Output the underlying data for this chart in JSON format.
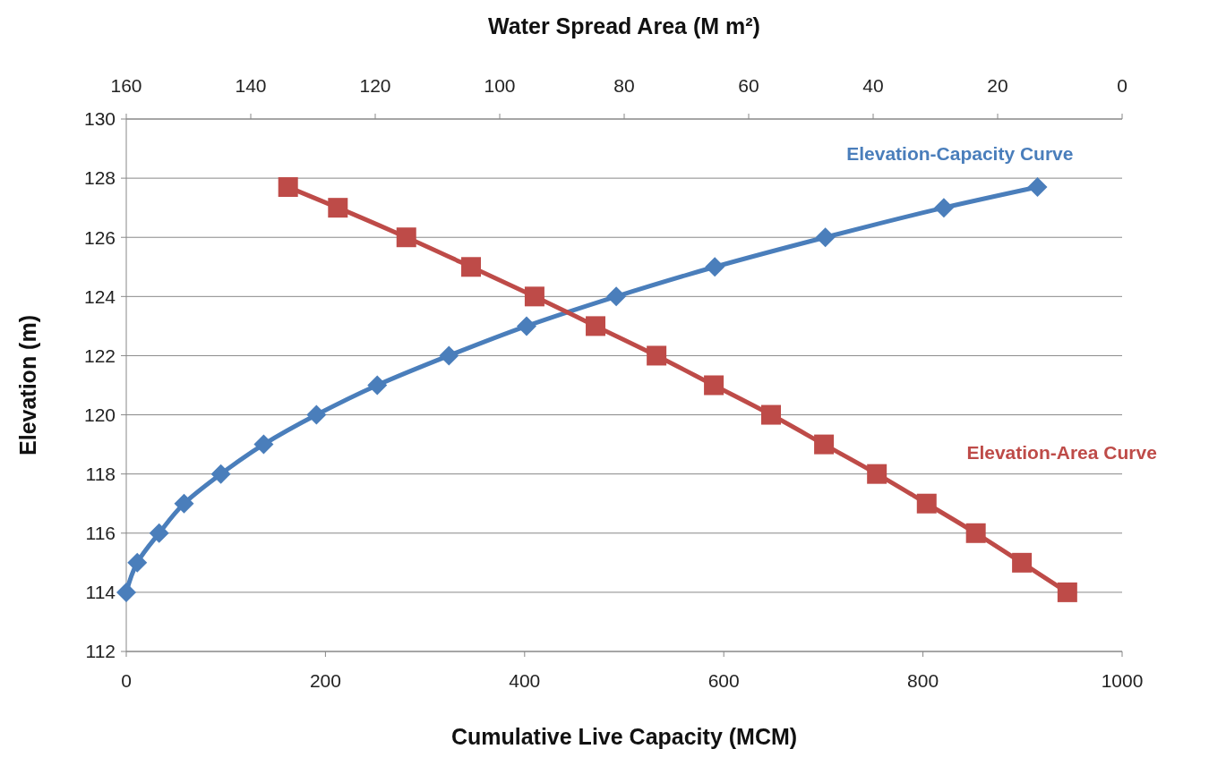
{
  "chart_data": {
    "type": "line",
    "xlabel": "Cumulative Live Capacity (MCM)",
    "x2label": "Water Spread Area (M m²)",
    "ylabel": "Elevation (m)",
    "xlim": [
      0,
      1000
    ],
    "xticks": [
      0,
      200,
      400,
      600,
      800,
      1000
    ],
    "x2lim": [
      160,
      0
    ],
    "x2ticks": [
      160,
      140,
      120,
      100,
      80,
      60,
      40,
      20,
      0
    ],
    "ylim": [
      112,
      130
    ],
    "yticks": [
      112,
      114,
      116,
      118,
      120,
      122,
      124,
      126,
      128,
      130
    ],
    "grid": "y",
    "series": [
      {
        "name": "Elevation-Capacity Curve",
        "color": "#4a7ebb",
        "marker": "diamond",
        "x": [
          0,
          11,
          33,
          58,
          95,
          138,
          191,
          252,
          324,
          402,
          492,
          591,
          702,
          821,
          915
        ],
        "values": [
          114,
          115,
          116,
          117,
          118,
          119,
          120,
          121,
          122,
          123,
          124,
          125,
          126,
          127,
          127.7
        ]
      },
      {
        "name": "Elevation-Area Curve",
        "color": "#be4b48",
        "marker": "square",
        "axis": "x2",
        "x": [
          134,
          126,
          115,
          104.6,
          94.4,
          84.6,
          74.8,
          65.6,
          56.4,
          47.9,
          39.4,
          31.4,
          23.5,
          16.1,
          8.8
        ],
        "values": [
          127.7,
          127,
          126,
          125,
          124,
          123,
          122,
          121,
          120,
          119,
          118,
          117,
          116,
          115,
          114
        ]
      }
    ]
  }
}
